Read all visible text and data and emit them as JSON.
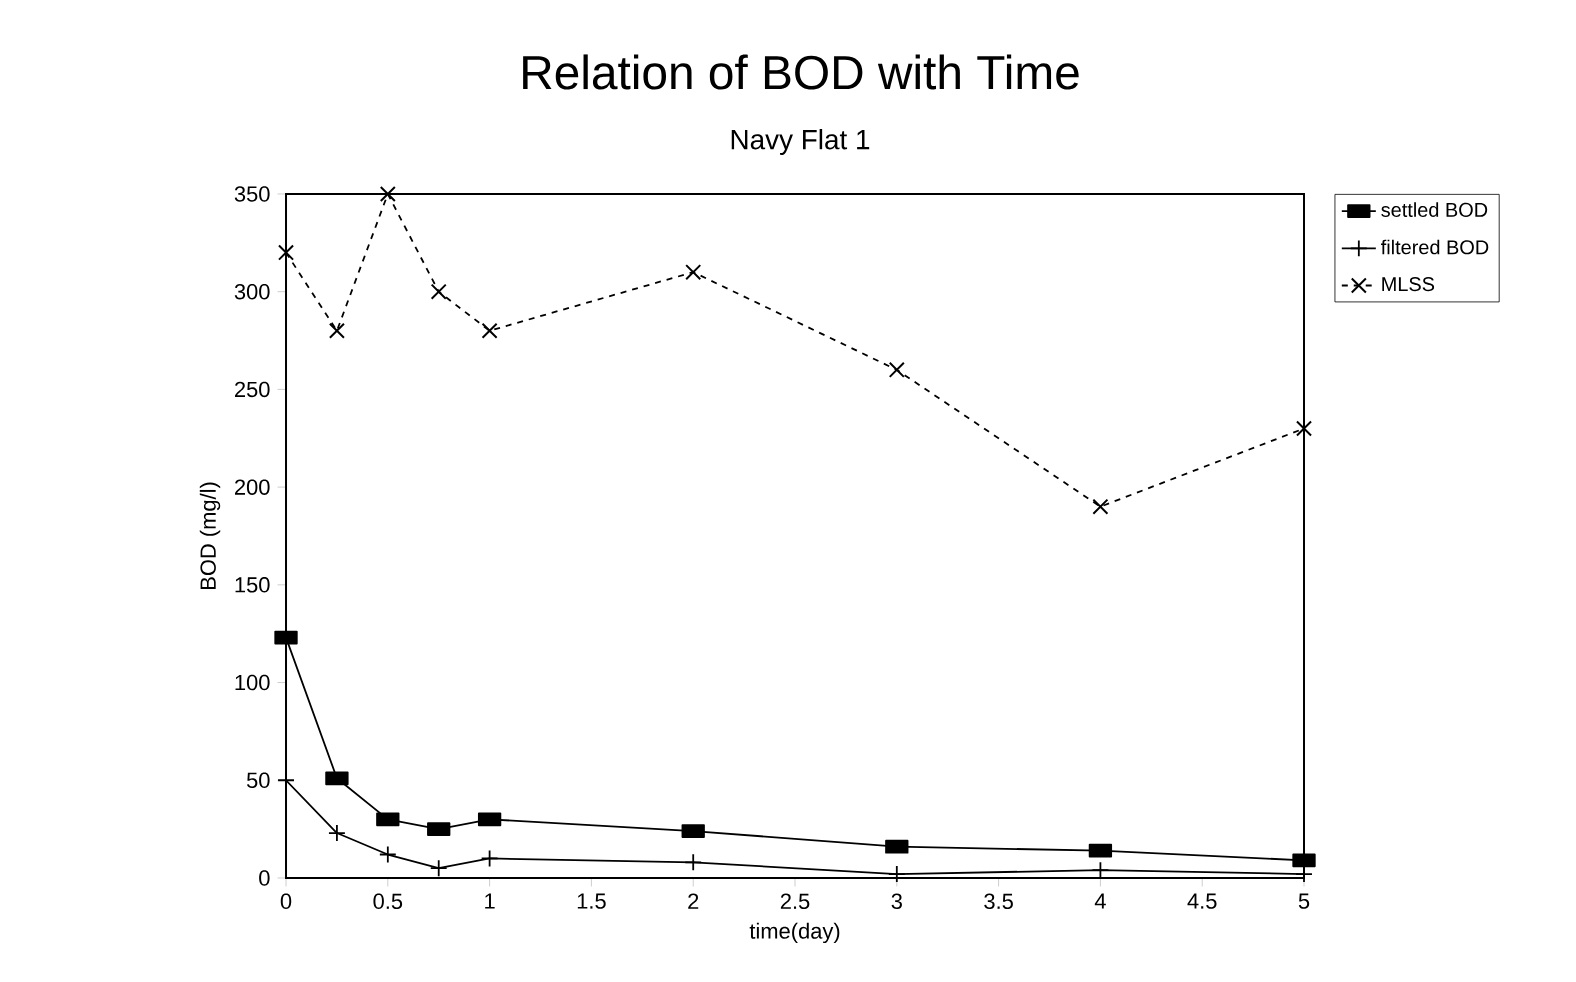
{
  "chart_data": {
    "type": "line",
    "title": "Relation of BOD with Time",
    "subtitle": "Navy Flat 1",
    "xlabel": "time(day)",
    "ylabel": "BOD (mg/l)",
    "x": [
      0,
      0.25,
      0.5,
      0.75,
      1,
      2,
      3,
      4,
      5
    ],
    "series": [
      {
        "name": "settled BOD",
        "color": "#000000",
        "marker": "square",
        "line_style": "solid",
        "values": [
          123,
          51,
          30,
          25,
          30,
          24,
          16,
          14,
          9
        ]
      },
      {
        "name": "filtered BOD",
        "color": "#000000",
        "marker": "cross",
        "line_style": "solid",
        "values": [
          50,
          23,
          12,
          5,
          10,
          8,
          2,
          4,
          2
        ]
      },
      {
        "name": "MLSS",
        "color": "#000000",
        "marker": "cross",
        "line_style": "dashed",
        "values": [
          320,
          280,
          350,
          300,
          280,
          310,
          260,
          190,
          230
        ]
      }
    ],
    "xlim": [
      0,
      5
    ],
    "ylim": [
      0,
      350
    ],
    "xticks": [
      0,
      0.5,
      1,
      1.5,
      2,
      2.5,
      3,
      3.5,
      4,
      4.5,
      5
    ],
    "yticks": [
      0,
      50,
      100,
      150,
      200,
      250,
      300,
      350
    ],
    "grid": false,
    "legend": "top right"
  }
}
